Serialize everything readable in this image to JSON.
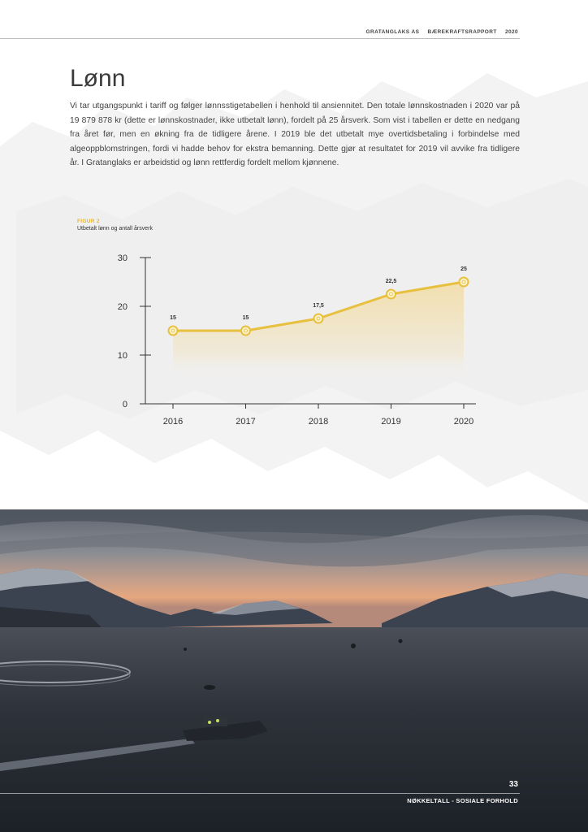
{
  "header": {
    "company": "GRATANGLAKS AS",
    "report": "BÆREKRAFTSRAPPORT",
    "year": "2020"
  },
  "section": {
    "title": "Lønn",
    "body": "Vi tar utgangspunkt i tariff og følger lønnsstigetabellen i henhold til ansiennitet. Den totale lønnskostnaden i 2020 var på 19 879 878 kr (dette er lønnskostnader, ikke utbetalt lønn), fordelt på 25 årsverk. Som vist i tabellen er dette en nedgang fra året før, men en økning fra de tidligere årene. I 2019 ble det utbetalt mye overtidsbetaling i forbindelse med algeoppblomstringen, fordi vi hadde behov for ekstra bemanning. Dette gjør at resultatet for 2019 vil avvike fra tidligere år. I Gratanglaks er arbeidstid og lønn rettferdig fordelt mellom kjønnene."
  },
  "figure": {
    "label": "FIGUR 2",
    "caption": "Utbetalt lønn og antall årsverk"
  },
  "chart_data": {
    "type": "area",
    "categories": [
      "2016",
      "2017",
      "2018",
      "2019",
      "2020"
    ],
    "values": [
      15,
      15,
      17.5,
      22.5,
      25
    ],
    "value_labels": [
      "15",
      "15",
      "17,5",
      "22,5",
      "25"
    ],
    "yticks": [
      "0",
      "10",
      "20",
      "30"
    ],
    "ylim": [
      0,
      30
    ],
    "title": "",
    "xlabel": "",
    "ylabel": "",
    "grid": false,
    "colors": {
      "line": "#e8c040",
      "fill": "#f4d27a",
      "marker_fill": "#fff4cc",
      "axis": "#333333"
    }
  },
  "footer": {
    "page_number": "33",
    "section": "NØKKELTALL - SOSIALE FORHOLD"
  }
}
